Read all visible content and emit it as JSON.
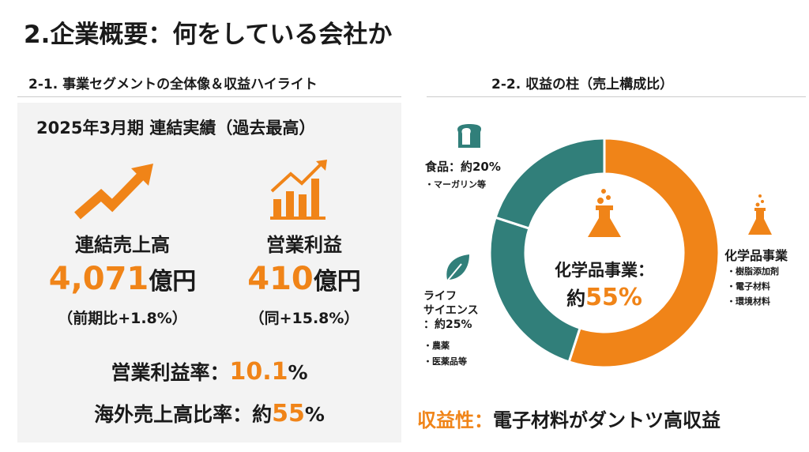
{
  "title": "2.企業概要：何をしている会社か",
  "left": {
    "heading": "2-1. 事業セグメントの全体像＆収益ハイライト",
    "period": "2025年3月期 連結実績（過去最高）",
    "sales": {
      "label": "連結売上高",
      "value": "4,071",
      "unit": "億円",
      "change": "（前期比+1.8%）"
    },
    "profit": {
      "label": "営業利益",
      "value": "410",
      "unit": "億円",
      "change": "（同+15.8%）"
    },
    "margin": {
      "label": "営業利益率：",
      "value": "10.1",
      "unit": "%"
    },
    "overseas": {
      "label": "海外売上高比率：約",
      "value": "55",
      "unit": "%"
    }
  },
  "right": {
    "heading": "2-2. 収益の柱（売上構成比）",
    "center_label": "化学品事業：",
    "center_prefix": "約",
    "center_value": "55%",
    "food": {
      "title": "食品：約20%",
      "items": [
        "・マーガリン等"
      ]
    },
    "life": {
      "title1": "ライフ",
      "title2": "サイエンス",
      "title3": "：約25%",
      "items": [
        "・農薬",
        "・医薬品等"
      ]
    },
    "chem": {
      "title": "化学品事業",
      "items": [
        "・樹脂添加剤",
        "・電子材料",
        "・環境材料"
      ]
    },
    "footer_label": "収益性：",
    "footer_text": "電子材料がダントツ高収益"
  },
  "colors": {
    "orange": "#f08418",
    "teal": "#317f7a"
  },
  "chart_data": {
    "type": "pie",
    "variant": "donut",
    "title": "収益の柱（売上構成比）",
    "categories": [
      "化学品事業",
      "ライフサイエンス",
      "食品"
    ],
    "values": [
      55,
      25,
      20
    ],
    "colors": [
      "#f08418",
      "#317f7a",
      "#317f7a"
    ]
  }
}
